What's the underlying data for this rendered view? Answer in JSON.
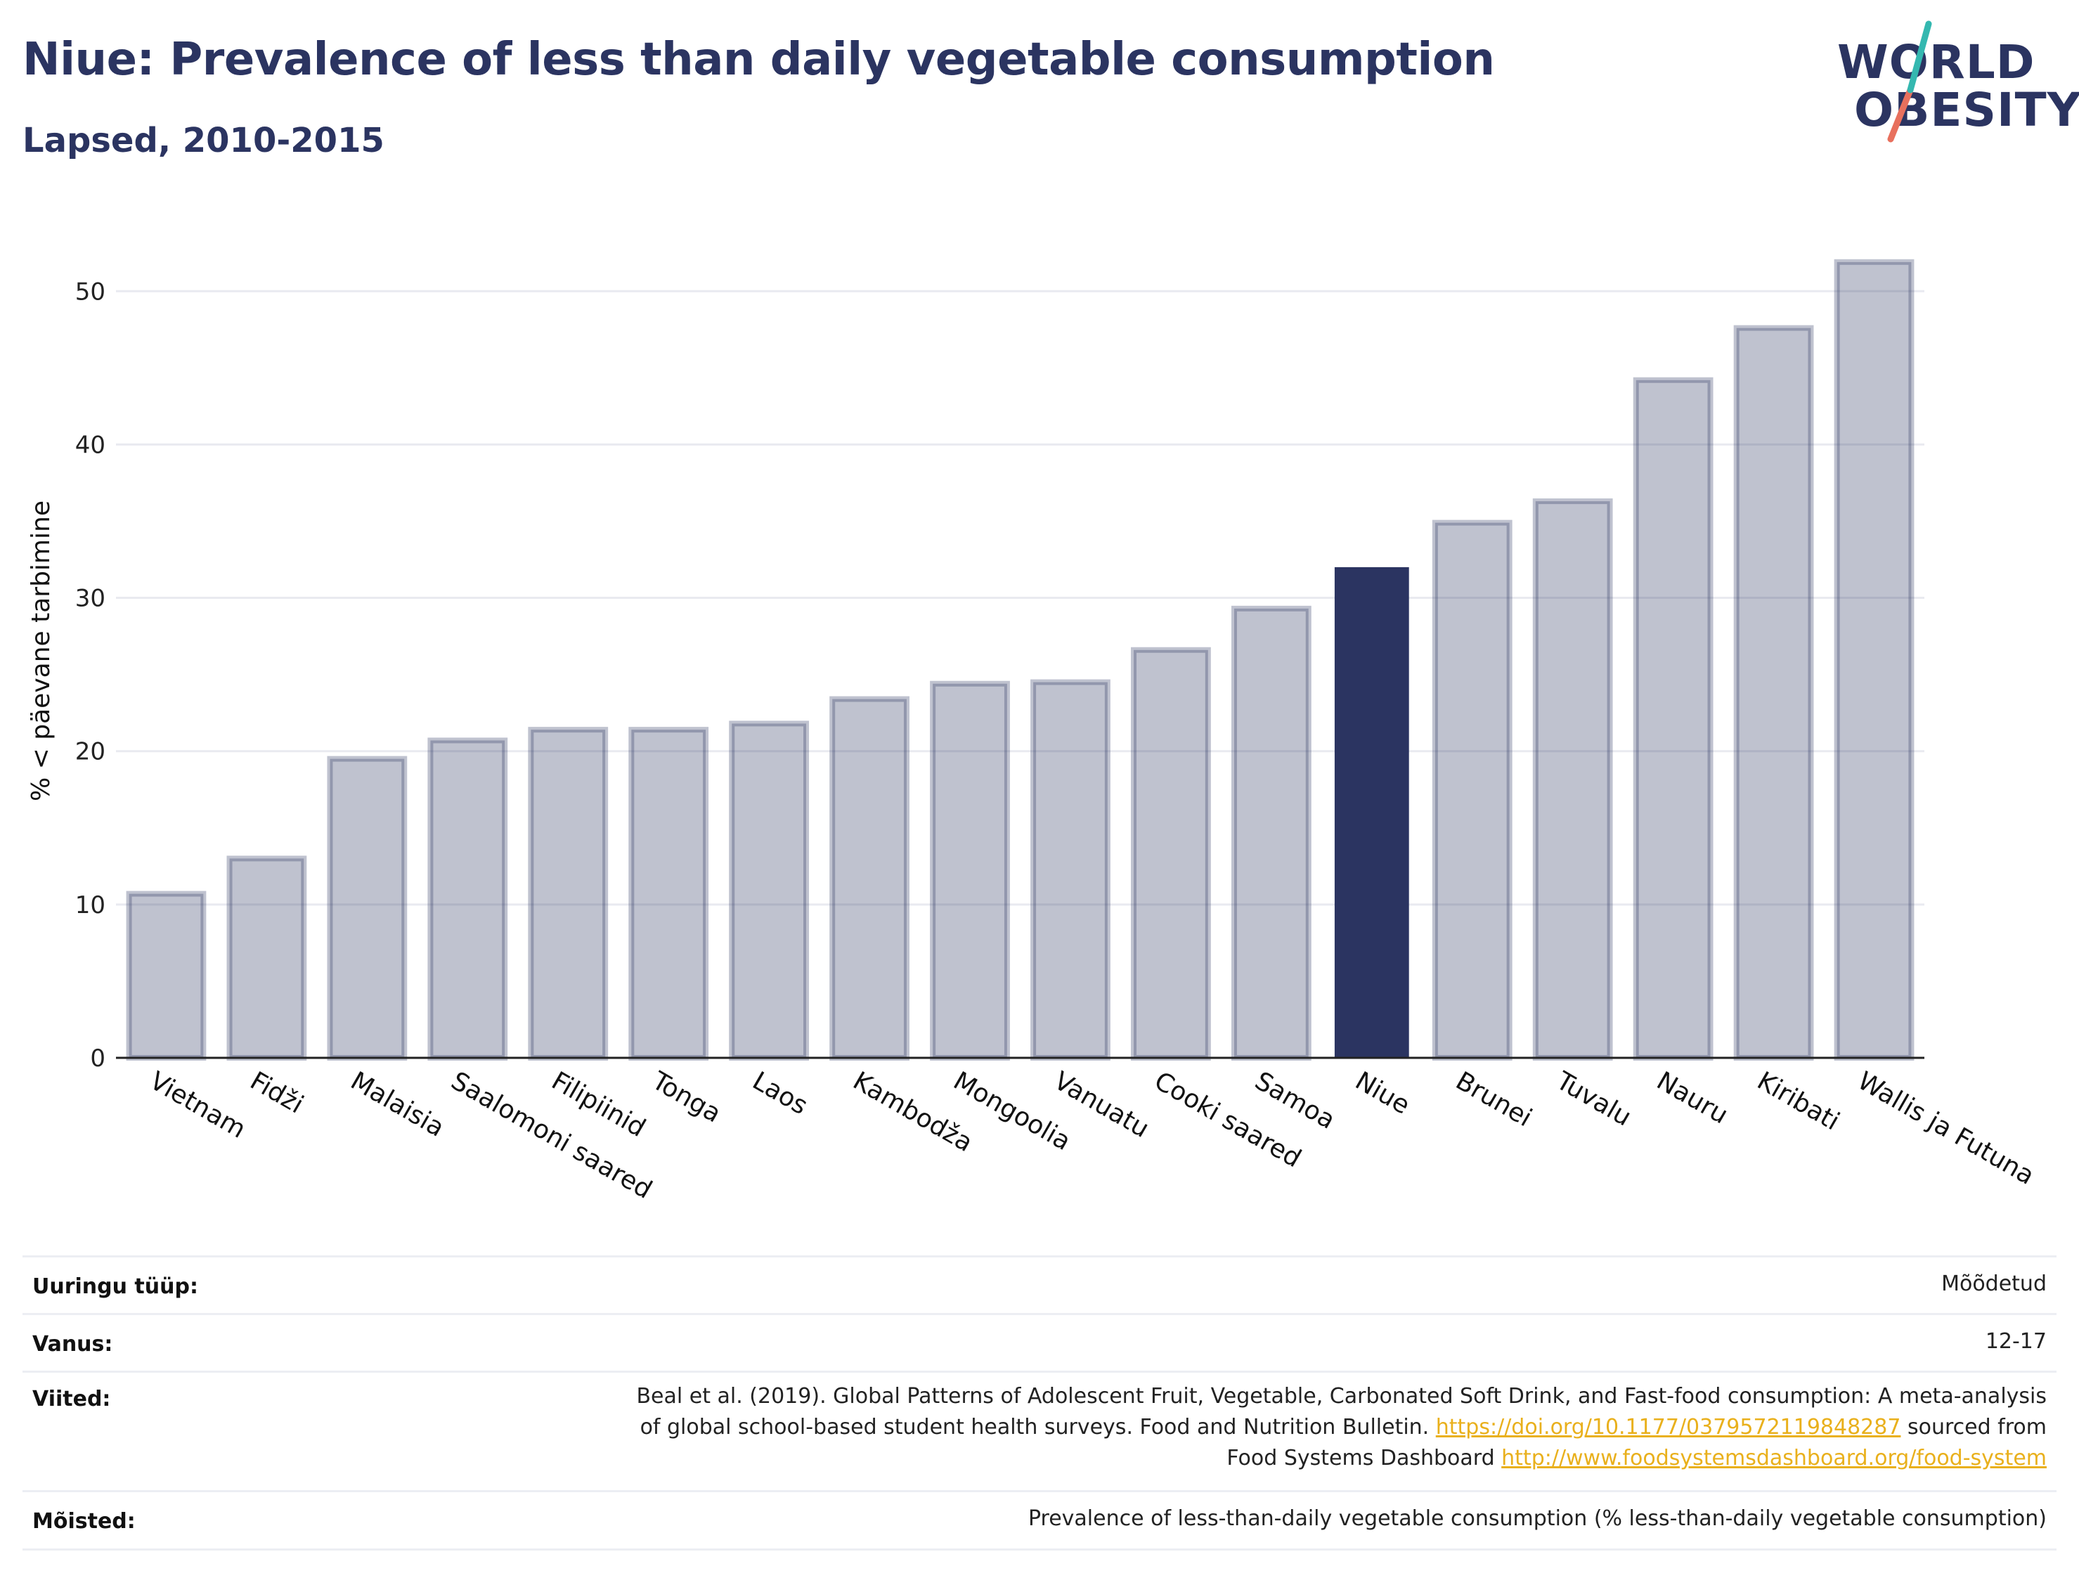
{
  "header": {
    "title": "Niue: Prevalence of less than daily vegetable consumption",
    "subtitle": "Lapsed, 2010-2015"
  },
  "logo": {
    "line1": "WORLD",
    "line2": "OBESITY"
  },
  "chart_data": {
    "type": "bar",
    "ylabel": "% < päevane tarbimine",
    "xlabel": "",
    "ylim": [
      0,
      54
    ],
    "yticks": [
      0,
      10,
      20,
      30,
      40,
      50
    ],
    "grid": true,
    "highlight": "Niue",
    "colors": {
      "base": "#2b3461",
      "highlight": "#2b3461",
      "base_opacity": 0.3
    },
    "categories": [
      "Vietnam",
      "Fidži",
      "Malaisia",
      "Saalomoni saared",
      "Filipiinid",
      "Tonga",
      "Laos",
      "Kambodža",
      "Mongoolia",
      "Vanuatu",
      "Cooki saared",
      "Samoa",
      "Niue",
      "Brunei",
      "Tuvalu",
      "Nauru",
      "Kiribati",
      "Wallis ja Futuna"
    ],
    "values": [
      10.7,
      13.0,
      19.5,
      20.7,
      21.4,
      21.4,
      21.8,
      23.4,
      24.4,
      24.5,
      26.6,
      29.3,
      32.0,
      34.9,
      36.3,
      44.2,
      47.6,
      51.9
    ]
  },
  "meta": {
    "survey_type_label": "Uuringu tüüp:",
    "survey_type_value": "Mõõdetud",
    "age_label": "Vanus:",
    "age_value": "12-17",
    "references_label": "Viited:",
    "references_line1": "Beal et al. (2019). Global Patterns of Adolescent Fruit, Vegetable, Carbonated Soft Drink, and Fast-food consumption: A meta-analysis",
    "references_line2_pre": "of global school-based student health surveys. Food and Nutrition Bulletin. ",
    "references_link1": "https://doi.org/10.1177/0379572119848287",
    "references_line2_post": " sourced from",
    "references_line3_pre": "Food Systems Dashboard ",
    "references_link2": "http://www.foodsystemsdashboard.org/food-system",
    "definitions_label": "Mõisted:",
    "definitions_value": "Prevalence of less-than-daily vegetable consumption (% less-than-daily vegetable consumption)"
  }
}
